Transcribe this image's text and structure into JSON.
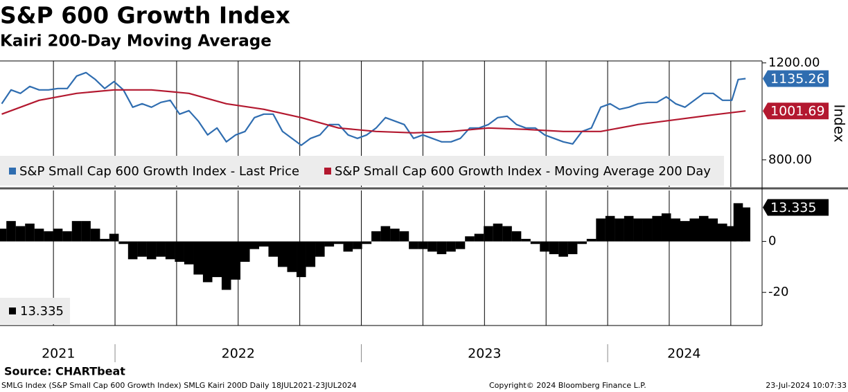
{
  "chart_data": [
    {
      "type": "line",
      "title": "S&P 600 Growth Index",
      "subtitle": "Kairi 200-Day Moving Average",
      "y_label": "Index",
      "xlim": [
        2021.533,
        2024.627
      ],
      "ylim": [
        688,
        1208
      ],
      "yticks": [
        {
          "value": 1200,
          "label": "1200.00"
        },
        {
          "value": 800,
          "label": "800.00"
        }
      ],
      "xgrid": [
        2021.75,
        2022,
        2022.25,
        2022.5,
        2022.75,
        2023,
        2023.25,
        2023.5,
        2023.75,
        2024,
        2024.25,
        2024.5
      ],
      "series": [
        {
          "name": "S&P Small Cap 600 Growth Index - Last Price",
          "color": "#2f6db0",
          "x": [
            2021.54,
            2021.578,
            2021.616,
            2021.654,
            2021.692,
            2021.73,
            2021.768,
            2021.806,
            2021.844,
            2021.882,
            2021.92,
            2021.958,
            2021.996,
            2022.034,
            2022.072,
            2022.11,
            2022.148,
            2022.186,
            2022.224,
            2022.262,
            2022.3,
            2022.338,
            2022.376,
            2022.414,
            2022.452,
            2022.49,
            2022.528,
            2022.566,
            2022.604,
            2022.642,
            2022.68,
            2022.718,
            2022.756,
            2022.794,
            2022.832,
            2022.87,
            2022.908,
            2022.946,
            2022.984,
            2023.022,
            2023.06,
            2023.098,
            2023.136,
            2023.174,
            2023.212,
            2023.25,
            2023.288,
            2023.326,
            2023.364,
            2023.402,
            2023.44,
            2023.478,
            2023.516,
            2023.554,
            2023.592,
            2023.63,
            2023.668,
            2023.706,
            2023.744,
            2023.782,
            2023.82,
            2023.858,
            2023.896,
            2023.934,
            2023.972,
            2024.01,
            2024.048,
            2024.086,
            2024.124,
            2024.162,
            2024.2,
            2024.238,
            2024.276,
            2024.314,
            2024.352,
            2024.39,
            2024.428,
            2024.466,
            2024.504,
            2024.53,
            2024.56
          ],
          "values": [
            1031.4,
            1088.6,
            1074.3,
            1102.9,
            1088.6,
            1088.6,
            1094.3,
            1094.3,
            1145.7,
            1160,
            1131.4,
            1094.3,
            1122.9,
            1088.6,
            1017.1,
            1031.4,
            1017.1,
            1037.1,
            1045.7,
            988.6,
            1002.9,
            960,
            902.9,
            931.4,
            874.3,
            902.9,
            917.1,
            974.3,
            988.6,
            988.6,
            917.1,
            888.6,
            860,
            888.6,
            902.9,
            945.7,
            945.7,
            902.9,
            888.6,
            902.9,
            931.4,
            974.3,
            960,
            945.7,
            888.6,
            902.9,
            888.6,
            874.3,
            874.3,
            888.6,
            931.4,
            931.4,
            945.7,
            974.3,
            980,
            945.7,
            931.4,
            931.4,
            902.9,
            888.6,
            874.3,
            865.7,
            917.1,
            931.4,
            1017.1,
            1031.4,
            1008.6,
            1017.1,
            1031.4,
            1037.1,
            1037.1,
            1060,
            1031.4,
            1017.1,
            1045.7,
            1074.3,
            1074.3,
            1045.7,
            1045.7,
            1131.4,
            1135.26
          ]
        },
        {
          "name": "S&P Small Cap 600 Growth Index - Moving Average 200 Day",
          "color": "#b3182f",
          "x": [
            2021.54,
            2021.692,
            2021.844,
            2021.996,
            2022.148,
            2022.3,
            2022.452,
            2022.604,
            2022.756,
            2022.908,
            2023.06,
            2023.212,
            2023.364,
            2023.516,
            2023.668,
            2023.82,
            2023.972,
            2024.124,
            2024.276,
            2024.428,
            2024.56
          ],
          "values": [
            988.6,
            1045.7,
            1074.3,
            1088.6,
            1088.6,
            1074.3,
            1031.4,
            1008.6,
            974.3,
            931.4,
            917.1,
            911.4,
            917.1,
            931.4,
            925.7,
            917.1,
            917.1,
            945.7,
            965.7,
            985.7,
            1001.69
          ]
        }
      ]
    },
    {
      "type": "bar",
      "xlim": [
        2021.533,
        2024.627
      ],
      "ylim": [
        -33,
        20
      ],
      "yticks": [
        0,
        -20
      ],
      "color": "#000000",
      "xgrid": [
        2021.75,
        2022,
        2022.25,
        2022.5,
        2022.75,
        2023,
        2023.25,
        2023.5,
        2023.75,
        2024,
        2024.25,
        2024.5
      ],
      "xticks": [
        {
          "value": 2021.77,
          "label": "2021"
        },
        {
          "value": 2022.5,
          "label": "2022"
        },
        {
          "value": 2023.5,
          "label": "2023"
        },
        {
          "value": 2024.31,
          "label": "2024"
        }
      ],
      "legend_label": "13.335",
      "x": [
        2021.54,
        2021.578,
        2021.616,
        2021.654,
        2021.692,
        2021.73,
        2021.768,
        2021.806,
        2021.844,
        2021.882,
        2021.92,
        2021.958,
        2021.996,
        2022.034,
        2022.072,
        2022.11,
        2022.148,
        2022.186,
        2022.224,
        2022.262,
        2022.3,
        2022.338,
        2022.376,
        2022.414,
        2022.452,
        2022.49,
        2022.528,
        2022.566,
        2022.604,
        2022.642,
        2022.68,
        2022.718,
        2022.756,
        2022.794,
        2022.832,
        2022.87,
        2022.908,
        2022.946,
        2022.984,
        2023.022,
        2023.06,
        2023.098,
        2023.136,
        2023.174,
        2023.212,
        2023.25,
        2023.288,
        2023.326,
        2023.364,
        2023.402,
        2023.44,
        2023.478,
        2023.516,
        2023.554,
        2023.592,
        2023.63,
        2023.668,
        2023.706,
        2023.744,
        2023.782,
        2023.82,
        2023.858,
        2023.896,
        2023.934,
        2023.972,
        2024.01,
        2024.048,
        2024.086,
        2024.124,
        2024.162,
        2024.2,
        2024.238,
        2024.276,
        2024.314,
        2024.352,
        2024.39,
        2024.428,
        2024.466,
        2024.504,
        2024.53,
        2024.56
      ],
      "values": [
        5,
        8,
        6,
        7,
        5,
        4,
        5,
        4,
        8,
        8,
        5,
        1,
        3,
        -1,
        -7,
        -6,
        -7,
        -6,
        -7,
        -8,
        -9,
        -13,
        -16,
        -14,
        -19,
        -15,
        -8,
        -3,
        -2,
        -6,
        -10,
        -12,
        -14,
        -10,
        -6,
        -2,
        -1,
        -4,
        -3,
        -1,
        4,
        6,
        5,
        4,
        -3,
        -3,
        -4,
        -5,
        -4,
        -3,
        2,
        3,
        6,
        7,
        6,
        4,
        1,
        -1,
        -4,
        -5,
        -6,
        -5,
        -1,
        1,
        9,
        10,
        9,
        10,
        9,
        9,
        10,
        11,
        9,
        8,
        9,
        10,
        9,
        7,
        6,
        15,
        13.335
      ]
    }
  ],
  "source": "Source: CHARTbeat",
  "footer": {
    "left": "SMLG Index (S&P Small Cap 600 Growth Index) SMLG Kairi 200D  Daily 18JUL2021-23JUL2024",
    "center": "Copyright© 2024 Bloomberg Finance L.P.",
    "right": "23-Jul-2024 10:07:33"
  }
}
